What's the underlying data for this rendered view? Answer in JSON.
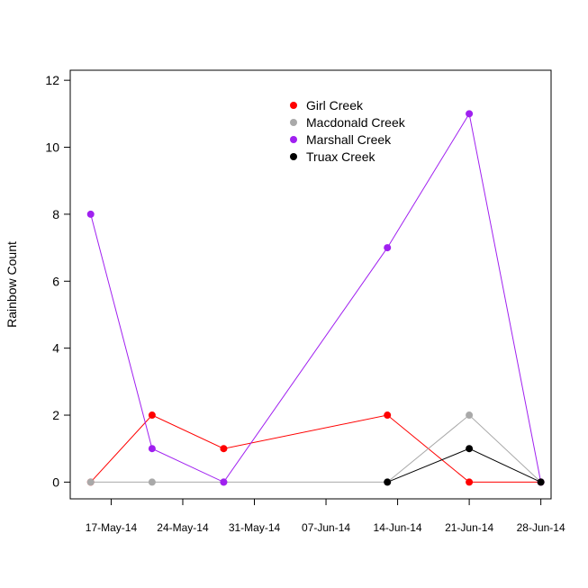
{
  "chart_data": {
    "type": "line",
    "title": "",
    "xlabel": "",
    "ylabel": "Rainbow Count",
    "ylim": [
      -0.5,
      12.3
    ],
    "xlim": [
      "2014-05-13",
      "2014-06-29"
    ],
    "y_ticks": [
      0,
      2,
      4,
      6,
      8,
      10,
      12
    ],
    "x_ticks": [
      {
        "date": "2014-05-17",
        "label": "17-May-14"
      },
      {
        "date": "2014-05-24",
        "label": "24-May-14"
      },
      {
        "date": "2014-05-31",
        "label": "31-May-14"
      },
      {
        "date": "2014-06-07",
        "label": "07-Jun-14"
      },
      {
        "date": "2014-06-14",
        "label": "14-Jun-14"
      },
      {
        "date": "2014-06-21",
        "label": "21-Jun-14"
      },
      {
        "date": "2014-06-28",
        "label": "28-Jun-14"
      }
    ],
    "grid": false,
    "legend_position": "top-center",
    "series": [
      {
        "name": "Girl Creek",
        "color": "#ff0000",
        "points": [
          {
            "x": "2014-05-15",
            "y": 0
          },
          {
            "x": "2014-05-21",
            "y": 2
          },
          {
            "x": "2014-05-28",
            "y": 1
          },
          {
            "x": "2014-06-13",
            "y": 2
          },
          {
            "x": "2014-06-21",
            "y": 0
          },
          {
            "x": "2014-06-28",
            "y": 0
          }
        ]
      },
      {
        "name": "Macdonald Creek",
        "color": "#a9a9a9",
        "points": [
          {
            "x": "2014-05-15",
            "y": 0
          },
          {
            "x": "2014-05-21",
            "y": 0
          },
          {
            "x": "2014-05-28",
            "y": 0
          },
          {
            "x": "2014-06-13",
            "y": 0
          },
          {
            "x": "2014-06-21",
            "y": 2
          },
          {
            "x": "2014-06-28",
            "y": 0
          }
        ]
      },
      {
        "name": "Marshall Creek",
        "color": "#a020f0",
        "points": [
          {
            "x": "2014-05-15",
            "y": 8
          },
          {
            "x": "2014-05-21",
            "y": 1
          },
          {
            "x": "2014-05-28",
            "y": 0
          },
          {
            "x": "2014-06-13",
            "y": 7
          },
          {
            "x": "2014-06-21",
            "y": 11
          },
          {
            "x": "2014-06-28",
            "y": 0
          }
        ]
      },
      {
        "name": "Truax Creek",
        "color": "#000000",
        "points": [
          {
            "x": "2014-06-13",
            "y": 0
          },
          {
            "x": "2014-06-21",
            "y": 1
          },
          {
            "x": "2014-06-28",
            "y": 0
          }
        ]
      }
    ]
  }
}
